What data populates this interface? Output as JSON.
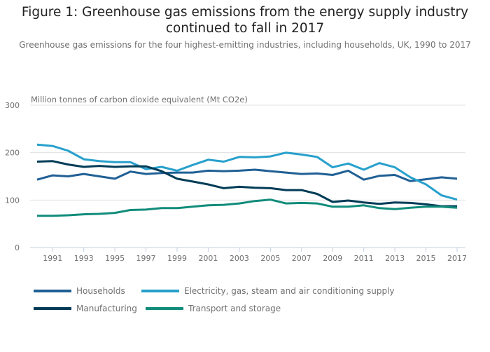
{
  "chart_data": {
    "type": "line",
    "title": "Figure 1: Greenhouse gas emissions from the energy supply industry continued to fall in 2017",
    "subtitle": "Greenhouse gas emissions for the four highest-emitting industries, including households, UK, 1990 to 2017",
    "ylabel": "Million tonnes of carbon dioxide equivalent (Mt CO2e)",
    "xlabel": "",
    "ylim": [
      0,
      300
    ],
    "yticks": [
      0,
      100,
      200,
      300
    ],
    "xlim": [
      1990,
      2017
    ],
    "xticks": [
      1991,
      1993,
      1995,
      1997,
      1999,
      2001,
      2003,
      2005,
      2007,
      2009,
      2011,
      2013,
      2015,
      2017
    ],
    "grid": true,
    "legend_position": "bottom",
    "x": [
      1990,
      1991,
      1992,
      1993,
      1994,
      1995,
      1996,
      1997,
      1998,
      1999,
      2000,
      2001,
      2002,
      2003,
      2004,
      2005,
      2006,
      2007,
      2008,
      2009,
      2010,
      2011,
      2012,
      2013,
      2014,
      2015,
      2016,
      2017
    ],
    "series": [
      {
        "name": "Households",
        "color": "#206095",
        "values": [
          143,
          152,
          150,
          155,
          150,
          145,
          160,
          155,
          157,
          158,
          158,
          162,
          161,
          162,
          164,
          161,
          158,
          155,
          156,
          153,
          162,
          143,
          151,
          153,
          140,
          144,
          148,
          145
        ]
      },
      {
        "name": "Electricity, gas, steam and air conditioning supply",
        "color": "#27a0cc",
        "values": [
          217,
          214,
          204,
          186,
          182,
          180,
          180,
          165,
          170,
          162,
          174,
          185,
          181,
          191,
          190,
          192,
          200,
          196,
          191,
          169,
          177,
          164,
          178,
          169,
          148,
          133,
          110,
          101
        ]
      },
      {
        "name": "Manufacturing",
        "color": "#003c57",
        "values": [
          181,
          182,
          175,
          170,
          172,
          170,
          171,
          171,
          161,
          145,
          139,
          133,
          125,
          128,
          126,
          125,
          121,
          121,
          113,
          96,
          99,
          95,
          92,
          95,
          94,
          91,
          87,
          87
        ]
      },
      {
        "name": "Transport and storage",
        "color": "#118c7b",
        "values": [
          67,
          67,
          68,
          70,
          71,
          73,
          79,
          80,
          83,
          83,
          86,
          89,
          90,
          93,
          98,
          101,
          93,
          94,
          93,
          86,
          86,
          89,
          83,
          81,
          84,
          86,
          86,
          84
        ]
      }
    ]
  }
}
